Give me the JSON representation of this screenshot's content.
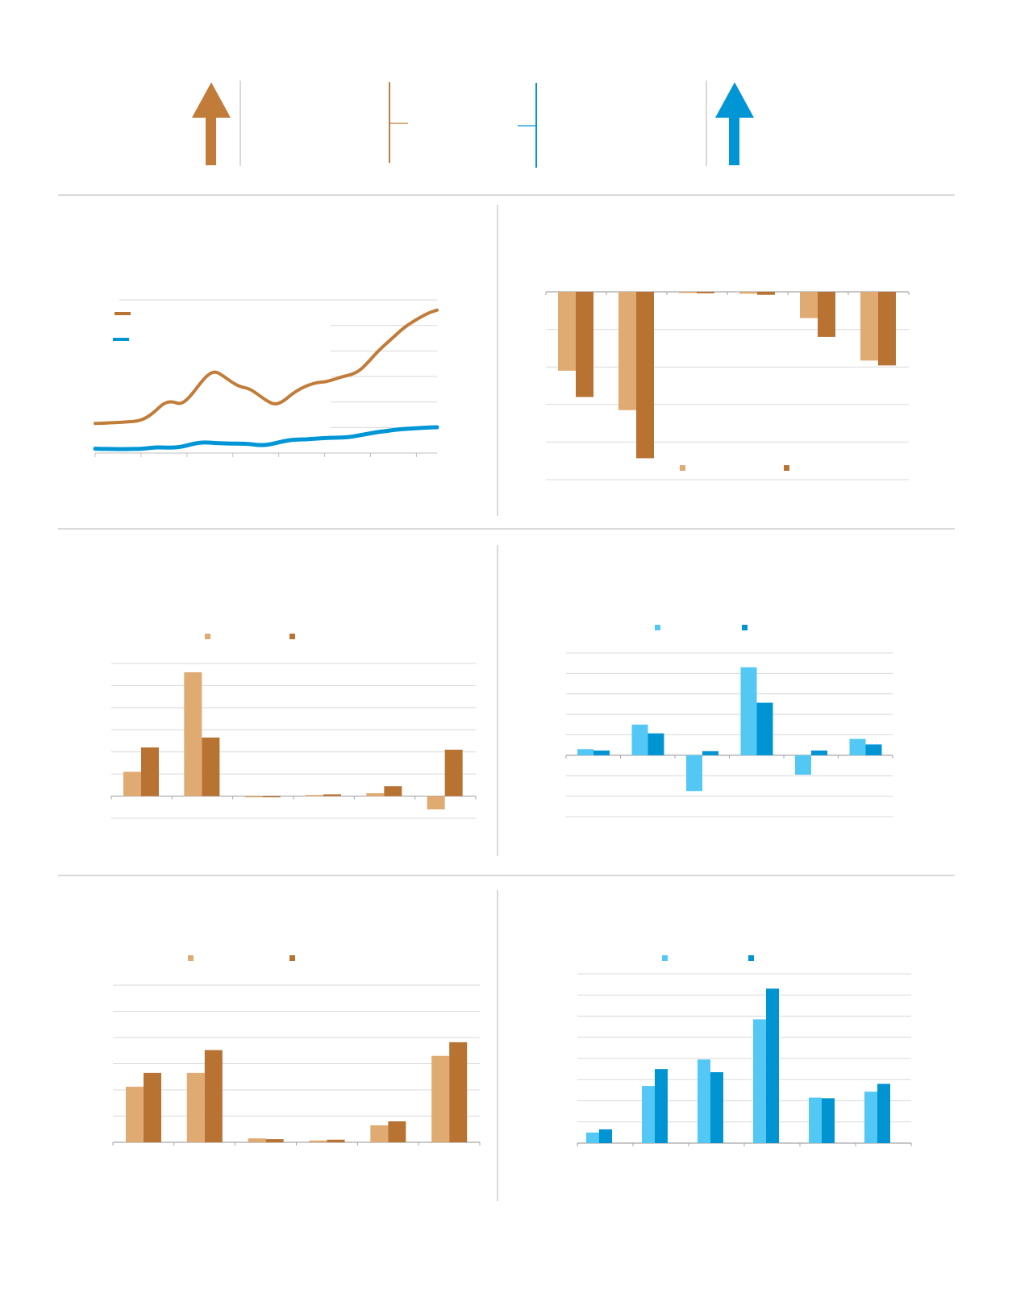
{
  "colors": {
    "copper": "#c27c3a",
    "copper_dark": "#b87333",
    "copper_light": "#e0aa73",
    "blue": "#0096d6",
    "blue_dark": "#0094d3",
    "blue_light": "#53c8f5",
    "grid": "#d9d9d9",
    "rule": "#d9d9d9"
  },
  "header": {
    "icons": [
      "arrow-up-icon-copper",
      "bracket-icon-copper",
      "bracket-icon-blue",
      "arrow-up-icon-blue"
    ]
  },
  "chart_data": [
    {
      "id": "line",
      "type": "line",
      "title": "",
      "xlabel": "",
      "ylabel": "",
      "x": [
        0,
        1,
        2,
        3,
        4,
        5,
        6,
        7,
        8,
        9,
        10,
        11,
        12,
        13,
        14,
        15,
        16,
        17,
        18,
        19,
        20,
        21,
        22,
        23,
        24,
        25,
        26,
        27,
        28,
        29,
        30,
        31,
        32,
        33,
        34,
        35,
        36,
        37,
        38,
        39,
        40
      ],
      "ylim": [
        0,
        6
      ],
      "series": [
        {
          "color": "copper",
          "values": [
            1.16,
            1.17,
            1.19,
            1.2,
            1.23,
            1.25,
            1.38,
            1.63,
            1.95,
            2.03,
            1.9,
            2.17,
            2.6,
            3.02,
            3.22,
            3.02,
            2.77,
            2.59,
            2.53,
            2.31,
            2.06,
            1.89,
            2.02,
            2.31,
            2.52,
            2.67,
            2.77,
            2.79,
            2.89,
            3.0,
            3.07,
            3.24,
            3.58,
            3.96,
            4.27,
            4.57,
            4.88,
            5.11,
            5.31,
            5.49,
            5.6
          ]
        },
        {
          "color": "blue",
          "values": [
            0.17,
            0.16,
            0.16,
            0.15,
            0.16,
            0.16,
            0.18,
            0.22,
            0.22,
            0.21,
            0.24,
            0.32,
            0.4,
            0.42,
            0.39,
            0.38,
            0.37,
            0.37,
            0.36,
            0.31,
            0.31,
            0.38,
            0.46,
            0.52,
            0.53,
            0.54,
            0.57,
            0.59,
            0.6,
            0.61,
            0.64,
            0.7,
            0.76,
            0.82,
            0.86,
            0.91,
            0.94,
            0.96,
            0.98,
            1.0,
            1.01
          ]
        }
      ]
    },
    {
      "id": "bar-tr",
      "type": "bar",
      "title": "",
      "categories": [
        "",
        "",
        "",
        "",
        "",
        ""
      ],
      "ylim": [
        -50,
        0
      ],
      "series": [
        {
          "color": "copper_light",
          "values": [
            -21,
            -31.5,
            -0.3,
            -0.5,
            -7,
            -18.3
          ]
        },
        {
          "color": "copper_dark",
          "values": [
            -28,
            -44.3,
            -0.4,
            -0.8,
            -12,
            -19.6
          ]
        }
      ]
    },
    {
      "id": "bar-ml",
      "type": "bar",
      "title": "",
      "categories": [
        "",
        "",
        "",
        "",
        "",
        ""
      ],
      "ylim": [
        -1,
        6
      ],
      "series": [
        {
          "color": "copper_light",
          "values": [
            1.1,
            5.6,
            -0.05,
            0.05,
            0.13,
            -0.6
          ]
        },
        {
          "color": "copper_dark",
          "values": [
            2.2,
            2.65,
            0,
            0.08,
            0.45,
            2.1
          ]
        }
      ]
    },
    {
      "id": "bar-mr",
      "type": "bar",
      "title": "",
      "categories": [
        "",
        "",
        "",
        "",
        "",
        ""
      ],
      "ylim": [
        -3,
        5
      ],
      "series": [
        {
          "color": "blue_light",
          "values": [
            0.3,
            1.5,
            -1.75,
            4.3,
            -0.95,
            0.8
          ]
        },
        {
          "color": "blue_dark",
          "values": [
            0.23,
            1.07,
            0.2,
            2.57,
            0.23,
            0.53
          ]
        }
      ]
    },
    {
      "id": "bar-bl",
      "type": "bar",
      "title": "",
      "categories": [
        "",
        "",
        "",
        "",
        "",
        ""
      ],
      "ylim": [
        0,
        6
      ],
      "series": [
        {
          "color": "copper_light",
          "values": [
            2.12,
            2.65,
            0.15,
            0.07,
            0.65,
            3.3
          ]
        },
        {
          "color": "copper_dark",
          "values": [
            2.65,
            3.52,
            0.12,
            0.1,
            0.8,
            3.82
          ]
        }
      ]
    },
    {
      "id": "bar-br",
      "type": "bar",
      "title": "",
      "categories": [
        "",
        "",
        "",
        "",
        "",
        ""
      ],
      "ylim": [
        0,
        8
      ],
      "series": [
        {
          "color": "blue_light",
          "values": [
            0.5,
            2.7,
            3.95,
            5.85,
            2.15,
            2.43
          ]
        },
        {
          "color": "blue_dark",
          "values": [
            0.65,
            3.5,
            3.35,
            7.3,
            2.12,
            2.8
          ]
        }
      ]
    }
  ]
}
